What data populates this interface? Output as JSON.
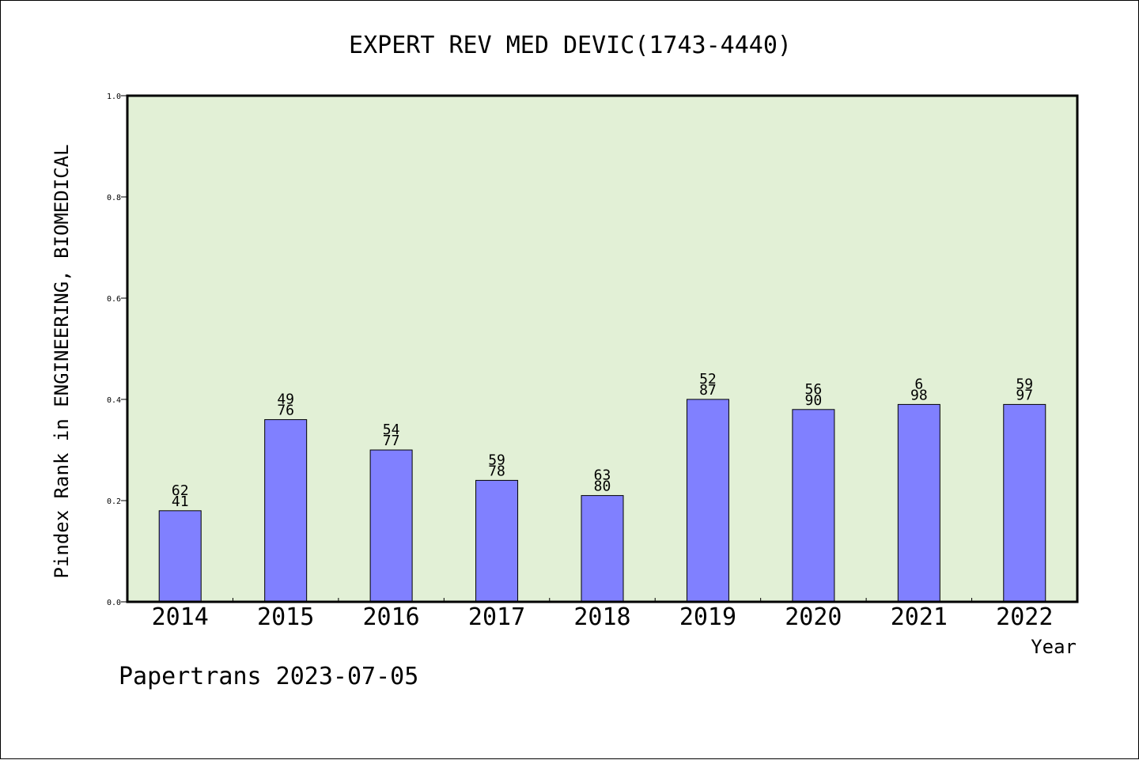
{
  "chart_data": {
    "type": "bar",
    "title": "EXPERT REV MED DEVIC(1743-4440)",
    "xlabel": "Year",
    "ylabel": "Pindex Rank in ENGINEERING, BIOMEDICAL",
    "footer": "Papertrans 2023-07-05",
    "categories": [
      "2014",
      "2015",
      "2016",
      "2017",
      "2018",
      "2019",
      "2020",
      "2021",
      "2022"
    ],
    "values": [
      0.18,
      0.36,
      0.3,
      0.24,
      0.21,
      0.4,
      0.38,
      0.39,
      0.39
    ],
    "label_top": [
      "62",
      "49",
      "54",
      "59",
      "63",
      "52",
      "56",
      "6",
      "59"
    ],
    "label_bottom": [
      "41",
      "76",
      "77",
      "78",
      "80",
      "87",
      "90",
      "98",
      "97"
    ],
    "ylim": [
      0.0,
      1.0
    ],
    "yticks": [
      "0.0",
      "0.2",
      "0.4",
      "0.6",
      "0.8",
      "1.0"
    ],
    "colors": {
      "plot_background": "#e2f0d6",
      "bar_fill": "#8080ff",
      "bar_stroke": "#000000",
      "axis": "#000000"
    },
    "grid": false
  }
}
